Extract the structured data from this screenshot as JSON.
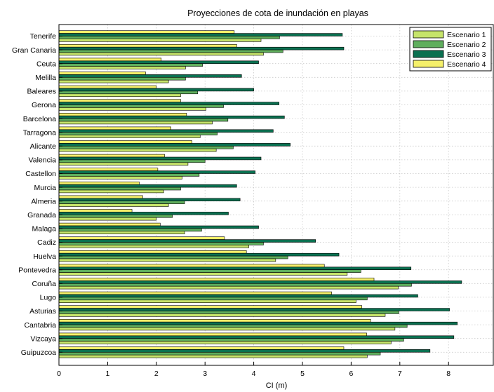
{
  "chart_data": {
    "type": "bar",
    "orientation": "horizontal",
    "title": "Proyecciones de cota de inundación en playas",
    "xlabel": "CI (m)",
    "ylabel": "",
    "xlim": [
      0,
      9
    ],
    "xticks": [
      0,
      1,
      2,
      3,
      4,
      5,
      6,
      7,
      8
    ],
    "grid": true,
    "legend_position": "top-right",
    "categories": [
      "Tenerife",
      "Gran Canaria",
      "Ceuta",
      "Melilla",
      "Baleares",
      "Gerona",
      "Barcelona",
      "Tarragona",
      "Alicante",
      "Valencia",
      "Castellon",
      "Murcia",
      "Almeria",
      "Granada",
      "Malaga",
      "Cadiz",
      "Huelva",
      "Pontevedra",
      "Coruña",
      "Lugo",
      "Asturias",
      "Cantabria",
      "Vizcaya",
      "Guipuzcoa"
    ],
    "series": [
      {
        "name": "Escenario 1",
        "color": "#c6e46a",
        "values": [
          4.15,
          4.2,
          2.6,
          2.25,
          2.5,
          3.02,
          3.15,
          2.9,
          3.23,
          2.65,
          2.53,
          2.15,
          2.25,
          2.0,
          2.58,
          3.9,
          4.45,
          5.92,
          6.97,
          6.1,
          6.7,
          6.9,
          6.82,
          6.33
        ]
      },
      {
        "name": "Escenario 2",
        "color": "#5fae5d",
        "values": [
          4.53,
          4.6,
          2.95,
          2.6,
          2.85,
          3.38,
          3.47,
          3.25,
          3.58,
          3.0,
          2.88,
          2.5,
          2.58,
          2.33,
          2.93,
          4.2,
          4.7,
          6.2,
          7.24,
          6.33,
          6.98,
          7.15,
          7.08,
          6.6
        ]
      },
      {
        "name": "Escenario 3",
        "color": "#0a7050",
        "values": [
          5.82,
          5.85,
          4.1,
          3.75,
          4.0,
          4.52,
          4.63,
          4.4,
          4.75,
          4.15,
          4.03,
          3.65,
          3.72,
          3.48,
          4.1,
          5.27,
          5.75,
          7.23,
          8.27,
          7.37,
          8.02,
          8.18,
          8.11,
          7.62
        ]
      },
      {
        "name": "Escenario 4",
        "color": "#f5f06a",
        "values": [
          3.6,
          3.65,
          2.1,
          1.78,
          2.0,
          2.5,
          2.62,
          2.3,
          2.73,
          2.17,
          2.03,
          1.65,
          1.72,
          1.5,
          2.08,
          3.4,
          3.85,
          5.45,
          6.47,
          5.6,
          6.22,
          6.4,
          6.32,
          5.85
        ]
      }
    ]
  }
}
